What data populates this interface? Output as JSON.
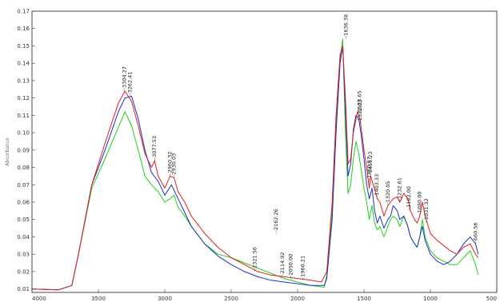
{
  "chart_data": {
    "type": "line",
    "title": "",
    "xlabel": "",
    "ylabel": "Absorbance",
    "xlim": [
      4000,
      500
    ],
    "ylim": [
      0.008,
      0.17
    ],
    "x_ticks": [
      "4000",
      "3500",
      "3000",
      "2500",
      "2000",
      "1500",
      "1000",
      "500"
    ],
    "y_ticks": [
      "0.01",
      "0.02",
      "0.03",
      "0.04",
      "0.05",
      "0.06",
      "0.07",
      "0.08",
      "0.09",
      "0.10",
      "0.11",
      "0.12",
      "0.13",
      "0.14",
      "0.15",
      "0.16",
      "0.17"
    ],
    "series": [
      {
        "color": "#e02020",
        "points": [
          [
            4000,
            0.01
          ],
          [
            3800,
            0.0095
          ],
          [
            3700,
            0.012
          ],
          [
            3650,
            0.03
          ],
          [
            3550,
            0.07
          ],
          [
            3450,
            0.094
          ],
          [
            3350,
            0.117
          ],
          [
            3300,
            0.124
          ],
          [
            3250,
            0.118
          ],
          [
            3200,
            0.104
          ],
          [
            3150,
            0.088
          ],
          [
            3100,
            0.08
          ],
          [
            3077,
            0.084
          ],
          [
            3050,
            0.075
          ],
          [
            3000,
            0.068
          ],
          [
            2960,
            0.075
          ],
          [
            2930,
            0.074
          ],
          [
            2900,
            0.066
          ],
          [
            2850,
            0.06
          ],
          [
            2800,
            0.052
          ],
          [
            2700,
            0.042
          ],
          [
            2600,
            0.034
          ],
          [
            2500,
            0.028
          ],
          [
            2400,
            0.024
          ],
          [
            2300,
            0.02
          ],
          [
            2200,
            0.018
          ],
          [
            2100,
            0.017
          ],
          [
            2000,
            0.016
          ],
          [
            1900,
            0.015
          ],
          [
            1820,
            0.014
          ],
          [
            1780,
            0.02
          ],
          [
            1740,
            0.06
          ],
          [
            1710,
            0.11
          ],
          [
            1680,
            0.145
          ],
          [
            1660,
            0.15
          ],
          [
            1640,
            0.12
          ],
          [
            1620,
            0.082
          ],
          [
            1600,
            0.085
          ],
          [
            1580,
            0.1
          ],
          [
            1550,
            0.112
          ],
          [
            1530,
            0.108
          ],
          [
            1520,
            0.102
          ],
          [
            1500,
            0.09
          ],
          [
            1480,
            0.08
          ],
          [
            1460,
            0.068
          ],
          [
            1450,
            0.075
          ],
          [
            1430,
            0.07
          ],
          [
            1400,
            0.062
          ],
          [
            1380,
            0.06
          ],
          [
            1350,
            0.052
          ],
          [
            1320,
            0.058
          ],
          [
            1300,
            0.06
          ],
          [
            1280,
            0.062
          ],
          [
            1250,
            0.063
          ],
          [
            1230,
            0.06
          ],
          [
            1200,
            0.065
          ],
          [
            1170,
            0.062
          ],
          [
            1150,
            0.055
          ],
          [
            1120,
            0.05
          ],
          [
            1100,
            0.048
          ],
          [
            1080,
            0.052
          ],
          [
            1060,
            0.06
          ],
          [
            1040,
            0.052
          ],
          [
            1000,
            0.042
          ],
          [
            950,
            0.038
          ],
          [
            900,
            0.035
          ],
          [
            850,
            0.032
          ],
          [
            800,
            0.03
          ],
          [
            750,
            0.034
          ],
          [
            700,
            0.036
          ],
          [
            660,
            0.03
          ],
          [
            640,
            0.028
          ]
        ]
      },
      {
        "color": "#2030c8",
        "points": [
          [
            4000,
            0.01
          ],
          [
            3800,
            0.0095
          ],
          [
            3700,
            0.012
          ],
          [
            3650,
            0.03
          ],
          [
            3550,
            0.07
          ],
          [
            3450,
            0.09
          ],
          [
            3350,
            0.112
          ],
          [
            3300,
            0.12
          ],
          [
            3250,
            0.121
          ],
          [
            3200,
            0.108
          ],
          [
            3150,
            0.09
          ],
          [
            3100,
            0.077
          ],
          [
            3050,
            0.072
          ],
          [
            3000,
            0.064
          ],
          [
            2950,
            0.07
          ],
          [
            2900,
            0.062
          ],
          [
            2850,
            0.054
          ],
          [
            2800,
            0.046
          ],
          [
            2700,
            0.036
          ],
          [
            2600,
            0.029
          ],
          [
            2500,
            0.024
          ],
          [
            2400,
            0.02
          ],
          [
            2300,
            0.017
          ],
          [
            2200,
            0.015
          ],
          [
            2100,
            0.014
          ],
          [
            2000,
            0.013
          ],
          [
            1900,
            0.012
          ],
          [
            1800,
            0.012
          ],
          [
            1780,
            0.016
          ],
          [
            1740,
            0.05
          ],
          [
            1710,
            0.1
          ],
          [
            1680,
            0.14
          ],
          [
            1660,
            0.15
          ],
          [
            1640,
            0.112
          ],
          [
            1620,
            0.075
          ],
          [
            1600,
            0.082
          ],
          [
            1580,
            0.102
          ],
          [
            1560,
            0.11
          ],
          [
            1540,
            0.108
          ],
          [
            1520,
            0.098
          ],
          [
            1500,
            0.085
          ],
          [
            1480,
            0.07
          ],
          [
            1460,
            0.062
          ],
          [
            1440,
            0.068
          ],
          [
            1420,
            0.055
          ],
          [
            1400,
            0.048
          ],
          [
            1380,
            0.052
          ],
          [
            1350,
            0.045
          ],
          [
            1320,
            0.05
          ],
          [
            1300,
            0.052
          ],
          [
            1280,
            0.058
          ],
          [
            1250,
            0.055
          ],
          [
            1230,
            0.05
          ],
          [
            1200,
            0.052
          ],
          [
            1170,
            0.046
          ],
          [
            1150,
            0.04
          ],
          [
            1120,
            0.036
          ],
          [
            1100,
            0.034
          ],
          [
            1080,
            0.04
          ],
          [
            1060,
            0.046
          ],
          [
            1040,
            0.038
          ],
          [
            1000,
            0.03
          ],
          [
            950,
            0.026
          ],
          [
            900,
            0.024
          ],
          [
            850,
            0.026
          ],
          [
            800,
            0.03
          ],
          [
            750,
            0.036
          ],
          [
            700,
            0.04
          ],
          [
            660,
            0.036
          ],
          [
            640,
            0.03
          ]
        ]
      },
      {
        "color": "#20d020",
        "points": [
          [
            4000,
            0.01
          ],
          [
            3800,
            0.0095
          ],
          [
            3700,
            0.012
          ],
          [
            3650,
            0.03
          ],
          [
            3550,
            0.068
          ],
          [
            3450,
            0.085
          ],
          [
            3350,
            0.103
          ],
          [
            3300,
            0.112
          ],
          [
            3250,
            0.104
          ],
          [
            3200,
            0.09
          ],
          [
            3150,
            0.075
          ],
          [
            3100,
            0.07
          ],
          [
            3050,
            0.066
          ],
          [
            3000,
            0.06
          ],
          [
            2960,
            0.062
          ],
          [
            2930,
            0.064
          ],
          [
            2900,
            0.057
          ],
          [
            2850,
            0.052
          ],
          [
            2800,
            0.046
          ],
          [
            2700,
            0.036
          ],
          [
            2600,
            0.03
          ],
          [
            2500,
            0.028
          ],
          [
            2400,
            0.025
          ],
          [
            2300,
            0.022
          ],
          [
            2200,
            0.019
          ],
          [
            2100,
            0.016
          ],
          [
            2000,
            0.014
          ],
          [
            1900,
            0.012
          ],
          [
            1800,
            0.011
          ],
          [
            1780,
            0.018
          ],
          [
            1740,
            0.055
          ],
          [
            1710,
            0.105
          ],
          [
            1680,
            0.142
          ],
          [
            1660,
            0.154
          ],
          [
            1640,
            0.1
          ],
          [
            1620,
            0.065
          ],
          [
            1600,
            0.07
          ],
          [
            1580,
            0.085
          ],
          [
            1560,
            0.095
          ],
          [
            1540,
            0.088
          ],
          [
            1520,
            0.078
          ],
          [
            1500,
            0.068
          ],
          [
            1480,
            0.06
          ],
          [
            1460,
            0.05
          ],
          [
            1440,
            0.058
          ],
          [
            1420,
            0.048
          ],
          [
            1400,
            0.044
          ],
          [
            1380,
            0.046
          ],
          [
            1350,
            0.04
          ],
          [
            1320,
            0.046
          ],
          [
            1300,
            0.05
          ],
          [
            1280,
            0.052
          ],
          [
            1250,
            0.05
          ],
          [
            1230,
            0.046
          ],
          [
            1200,
            0.052
          ],
          [
            1170,
            0.046
          ],
          [
            1150,
            0.04
          ],
          [
            1120,
            0.036
          ],
          [
            1100,
            0.034
          ],
          [
            1080,
            0.04
          ],
          [
            1060,
            0.05
          ],
          [
            1040,
            0.04
          ],
          [
            1000,
            0.032
          ],
          [
            950,
            0.028
          ],
          [
            900,
            0.026
          ],
          [
            850,
            0.024
          ],
          [
            800,
            0.024
          ],
          [
            750,
            0.028
          ],
          [
            700,
            0.032
          ],
          [
            660,
            0.024
          ],
          [
            640,
            0.018
          ]
        ]
      }
    ],
    "annotations": [
      {
        "text": "3304.27",
        "x": 3304,
        "y": 0.124
      },
      {
        "text": "3262.41",
        "x": 3262,
        "y": 0.121
      },
      {
        "text": "3077.53",
        "x": 3077,
        "y": 0.084
      },
      {
        "text": "2960.32",
        "x": 2960,
        "y": 0.075
      },
      {
        "text": "2930.03",
        "x": 2930,
        "y": 0.074
      },
      {
        "text": "2321.56",
        "x": 2321,
        "y": 0.02
      },
      {
        "text": "2162.26",
        "x": 2162,
        "y": 0.042
      },
      {
        "text": "2114.92",
        "x": 2114,
        "y": 0.017
      },
      {
        "text": "2050.00",
        "x": 2050,
        "y": 0.016
      },
      {
        "text": "1960.21",
        "x": 1960,
        "y": 0.015
      },
      {
        "text": "1636.38",
        "x": 1636,
        "y": 0.154
      },
      {
        "text": "1533.65",
        "x": 1533,
        "y": 0.11
      },
      {
        "text": "1529.03",
        "x": 1529,
        "y": 0.105
      },
      {
        "text": "1460.87",
        "x": 1460,
        "y": 0.072
      },
      {
        "text": "1451.23",
        "x": 1451,
        "y": 0.075
      },
      {
        "text": "1403.33",
        "x": 1403,
        "y": 0.062
      },
      {
        "text": "1320.05",
        "x": 1320,
        "y": 0.058
      },
      {
        "text": "1232.61",
        "x": 1232,
        "y": 0.06
      },
      {
        "text": "1162.00",
        "x": 1162,
        "y": 0.055
      },
      {
        "text": "1080.00",
        "x": 1080,
        "y": 0.052
      },
      {
        "text": "1031.32",
        "x": 1031,
        "y": 0.048
      },
      {
        "text": "660.56",
        "x": 660,
        "y": 0.036
      }
    ]
  }
}
